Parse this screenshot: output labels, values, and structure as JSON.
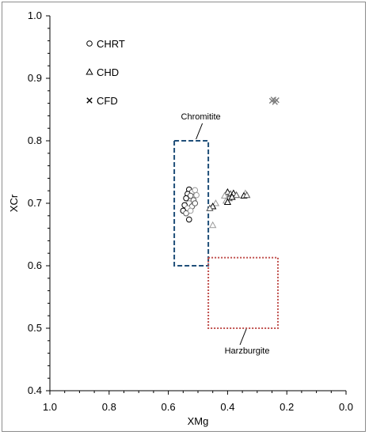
{
  "chart_data": {
    "type": "scatter",
    "xlabel": "XMg",
    "ylabel": "XCr",
    "xlim": [
      1.0,
      0.0
    ],
    "ylim": [
      0.4,
      1.0
    ],
    "x_reversed": true,
    "x_ticks": [
      "1.0",
      "0.8",
      "0.6",
      "0.4",
      "0.2",
      "0.0"
    ],
    "y_ticks": [
      "0.4",
      "0.5",
      "0.6",
      "0.7",
      "0.8",
      "0.9",
      "1.0"
    ],
    "grid": false,
    "legend_position": "top-left",
    "series": [
      {
        "name": "CHRT",
        "marker": "circle",
        "color": "#000000",
        "points": [
          {
            "x": 0.53,
            "y": 0.722
          },
          {
            "x": 0.52,
            "y": 0.718
          },
          {
            "x": 0.51,
            "y": 0.721
          },
          {
            "x": 0.535,
            "y": 0.715
          },
          {
            "x": 0.525,
            "y": 0.712
          },
          {
            "x": 0.505,
            "y": 0.713
          },
          {
            "x": 0.54,
            "y": 0.708
          },
          {
            "x": 0.515,
            "y": 0.705
          },
          {
            "x": 0.53,
            "y": 0.7
          },
          {
            "x": 0.545,
            "y": 0.697
          },
          {
            "x": 0.52,
            "y": 0.695
          },
          {
            "x": 0.535,
            "y": 0.692
          },
          {
            "x": 0.55,
            "y": 0.688
          },
          {
            "x": 0.54,
            "y": 0.684
          },
          {
            "x": 0.525,
            "y": 0.688
          },
          {
            "x": 0.53,
            "y": 0.674
          },
          {
            "x": 0.51,
            "y": 0.7
          }
        ]
      },
      {
        "name": "CHD",
        "marker": "triangle",
        "color": "#000000",
        "points": [
          {
            "x": 0.4,
            "y": 0.718
          },
          {
            "x": 0.39,
            "y": 0.715
          },
          {
            "x": 0.41,
            "y": 0.712
          },
          {
            "x": 0.38,
            "y": 0.716
          },
          {
            "x": 0.395,
            "y": 0.708
          },
          {
            "x": 0.405,
            "y": 0.704
          },
          {
            "x": 0.385,
            "y": 0.71
          },
          {
            "x": 0.37,
            "y": 0.713
          },
          {
            "x": 0.34,
            "y": 0.716
          },
          {
            "x": 0.345,
            "y": 0.712
          },
          {
            "x": 0.335,
            "y": 0.713
          },
          {
            "x": 0.44,
            "y": 0.7
          },
          {
            "x": 0.45,
            "y": 0.695
          },
          {
            "x": 0.46,
            "y": 0.692
          },
          {
            "x": 0.45,
            "y": 0.665
          },
          {
            "x": 0.4,
            "y": 0.702
          }
        ]
      },
      {
        "name": "CFD",
        "marker": "cross",
        "color": "#7f7f7f",
        "points": [
          {
            "x": 0.245,
            "y": 0.866
          },
          {
            "x": 0.24,
            "y": 0.862
          },
          {
            "x": 0.25,
            "y": 0.864
          },
          {
            "x": 0.235,
            "y": 0.865
          }
        ]
      }
    ],
    "annotations": [
      {
        "label": "Chromitite",
        "box": {
          "x": [
            0.58,
            0.465
          ],
          "y": [
            0.6,
            0.8
          ]
        },
        "style": "dashed",
        "color": "#1f4e79"
      },
      {
        "label": "Harzburgite",
        "box": {
          "x": [
            0.465,
            0.23
          ],
          "y": [
            0.5,
            0.613
          ]
        },
        "style": "dotted",
        "color": "#c0504d"
      }
    ]
  }
}
